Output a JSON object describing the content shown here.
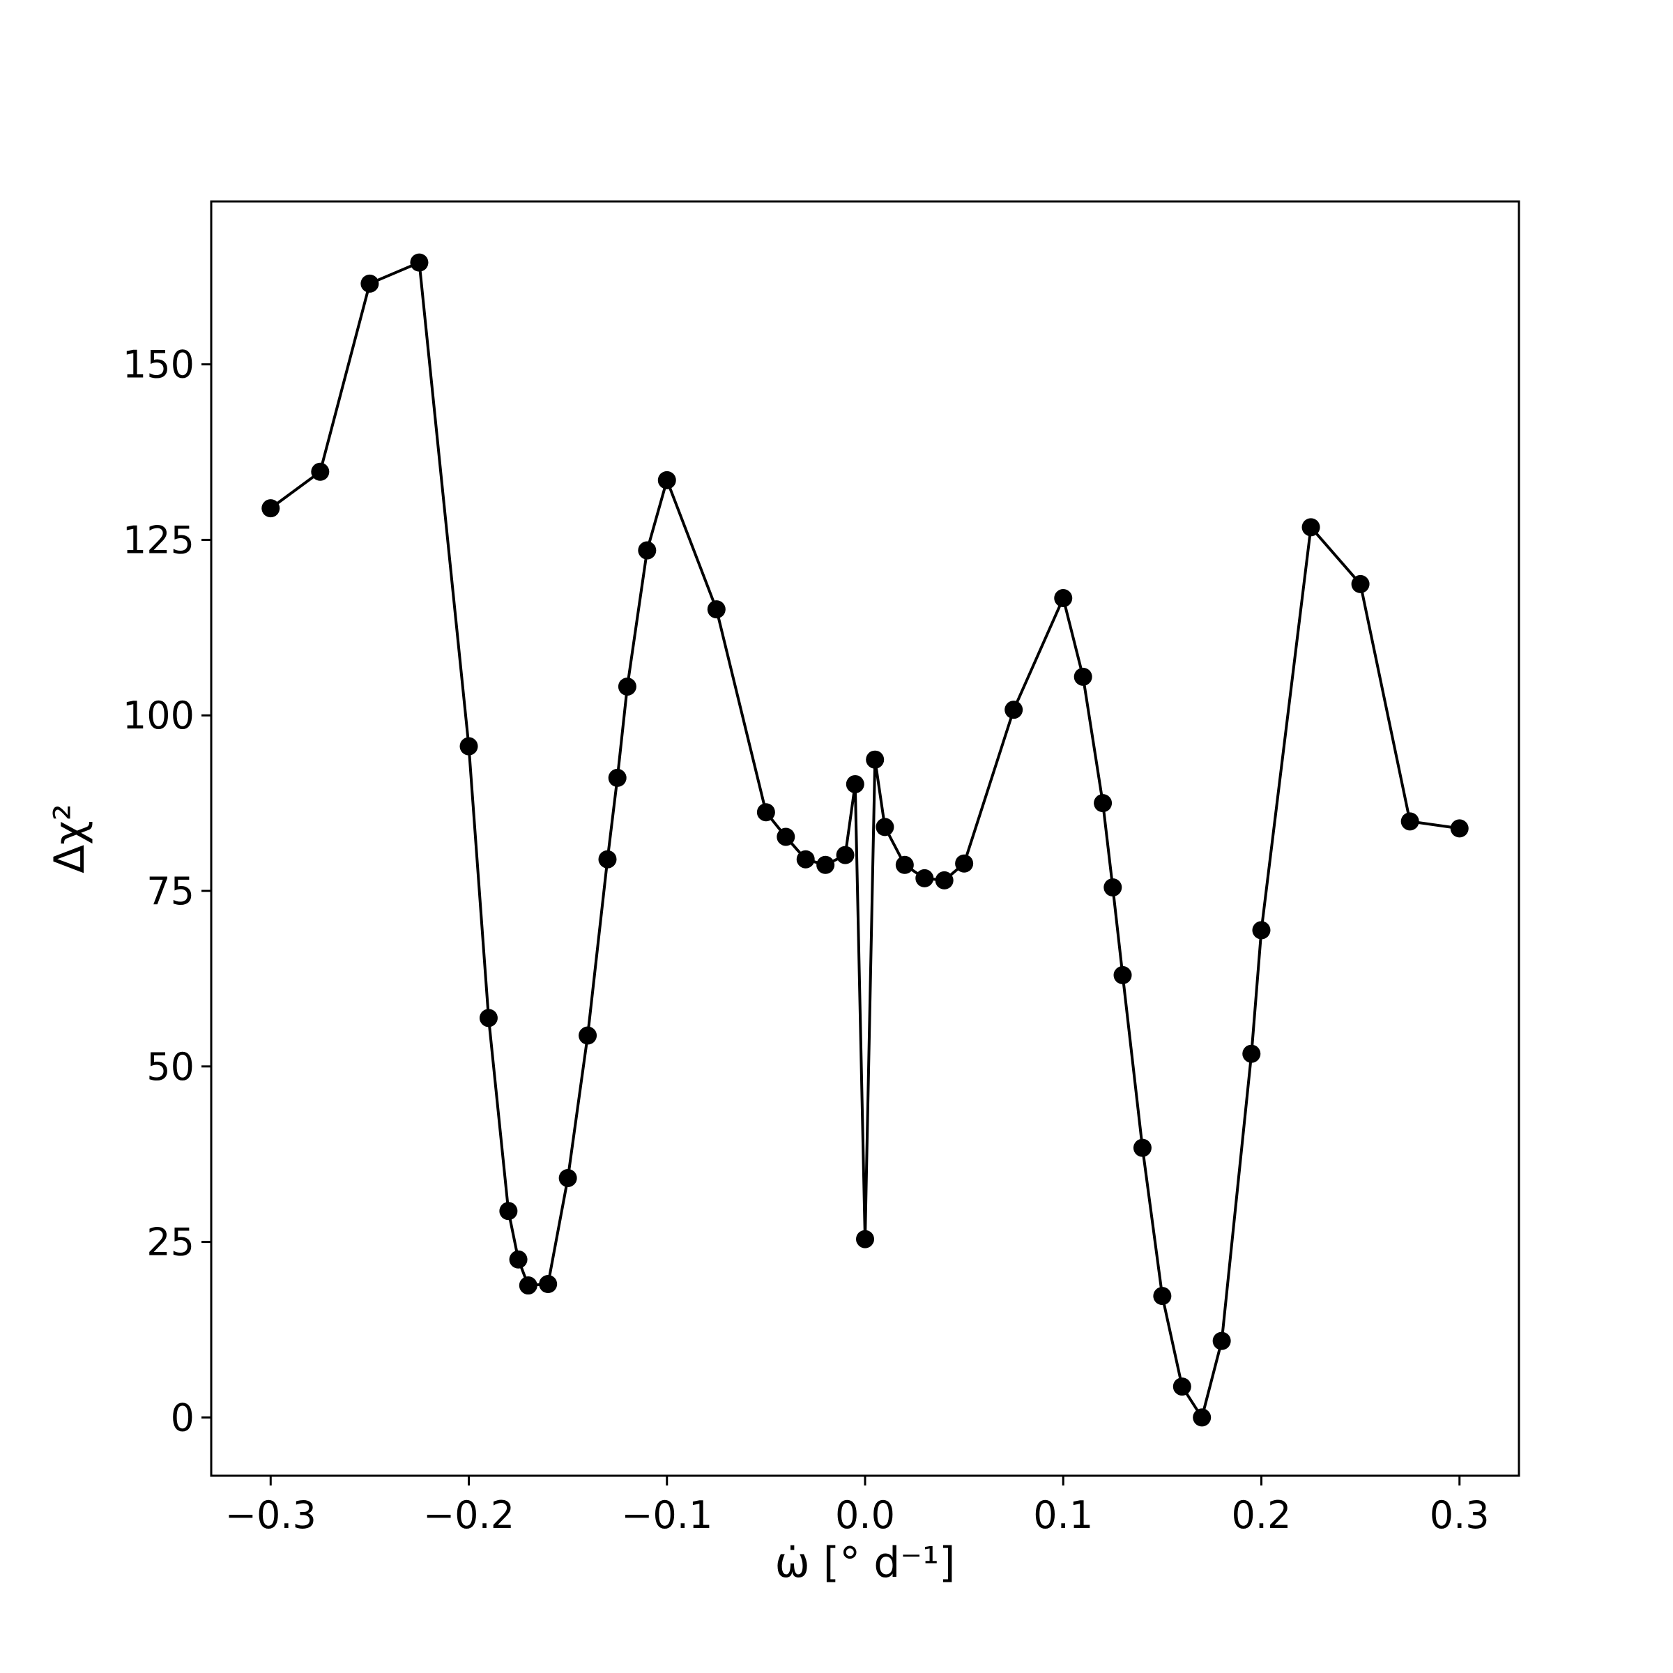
{
  "chart_data": {
    "type": "line",
    "xlabel": "ω̇ [° d⁻¹]",
    "ylabel": "Δχ²",
    "x": [
      -0.3,
      -0.275,
      -0.25,
      -0.225,
      -0.2,
      -0.19,
      -0.18,
      -0.175,
      -0.17,
      -0.16,
      -0.15,
      -0.14,
      -0.13,
      -0.125,
      -0.12,
      -0.11,
      -0.1,
      -0.075,
      -0.05,
      -0.04,
      -0.03,
      -0.02,
      -0.01,
      -0.005,
      0,
      0.005,
      0.01,
      0.02,
      0.03,
      0.04,
      0.05,
      0.075,
      0.1,
      0.11,
      0.12,
      0.125,
      0.13,
      0.14,
      0.15,
      0.16,
      0.17,
      0.18,
      0.195,
      0.2,
      0.225,
      0.25,
      0.275,
      0.3
    ],
    "values": [
      129.5,
      134.7,
      161.5,
      164.5,
      95.6,
      56.9,
      29.4,
      22.5,
      18.8,
      19.0,
      34.1,
      54.4,
      79.5,
      91.1,
      104.1,
      123.5,
      133.5,
      115.1,
      86.2,
      82.7,
      79.5,
      78.7,
      80.1,
      90.2,
      25.4,
      93.7,
      84.1,
      78.7,
      76.8,
      76.5,
      78.9,
      100.8,
      116.7,
      105.5,
      87.5,
      75.5,
      63.0,
      38.4,
      17.3,
      4.4,
      0,
      10.9,
      51.8,
      69.4,
      126.8,
      118.7,
      84.9,
      83.9
    ],
    "color": "#000000",
    "xlim": [
      -0.33,
      0.33
    ],
    "xticks": [
      {
        "value": -0.3,
        "label": "−0.3"
      },
      {
        "value": -0.2,
        "label": "−0.2"
      },
      {
        "value": -0.1,
        "label": "−0.1"
      },
      {
        "value": 0,
        "label": "0.0"
      },
      0.1,
      0.2,
      0.3
    ],
    "ylim": [
      -8.3,
      173.2
    ],
    "yticks": [
      0,
      25,
      50,
      75,
      100,
      125,
      150
    ],
    "grid": false
  }
}
